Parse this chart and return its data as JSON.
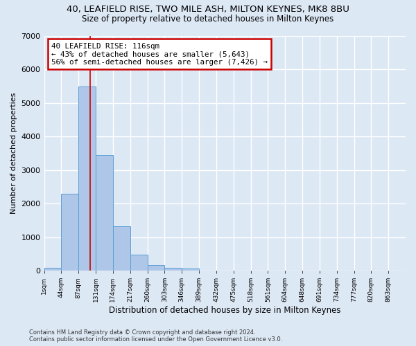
{
  "title_line1": "40, LEAFIELD RISE, TWO MILE ASH, MILTON KEYNES, MK8 8BU",
  "title_line2": "Size of property relative to detached houses in Milton Keynes",
  "xlabel": "Distribution of detached houses by size in Milton Keynes",
  "ylabel": "Number of detached properties",
  "footnote": "Contains HM Land Registry data © Crown copyright and database right 2024.\nContains public sector information licensed under the Open Government Licence v3.0.",
  "bar_labels": [
    "1sqm",
    "44sqm",
    "87sqm",
    "131sqm",
    "174sqm",
    "217sqm",
    "260sqm",
    "303sqm",
    "346sqm",
    "389sqm",
    "432sqm",
    "475sqm",
    "518sqm",
    "561sqm",
    "604sqm",
    "648sqm",
    "691sqm",
    "734sqm",
    "777sqm",
    "820sqm",
    "863sqm"
  ],
  "bar_values": [
    80,
    2280,
    5480,
    3440,
    1310,
    470,
    160,
    90,
    55,
    0,
    0,
    0,
    0,
    0,
    0,
    0,
    0,
    0,
    0,
    0,
    0
  ],
  "bar_color": "#aec6e8",
  "bar_edge_color": "#5a9fd4",
  "annotation_text": "40 LEAFIELD RISE: 116sqm\n← 43% of detached houses are smaller (5,643)\n56% of semi-detached houses are larger (7,426) →",
  "annotation_box_color": "#ffffff",
  "annotation_box_edge_color": "#cc0000",
  "vline_color": "#cc0000",
  "ylim": [
    0,
    7000
  ],
  "bin_width": 43,
  "background_color": "#dde8f5",
  "grid_color": "#ffffff",
  "property_sqm": 116,
  "num_bins": 21
}
